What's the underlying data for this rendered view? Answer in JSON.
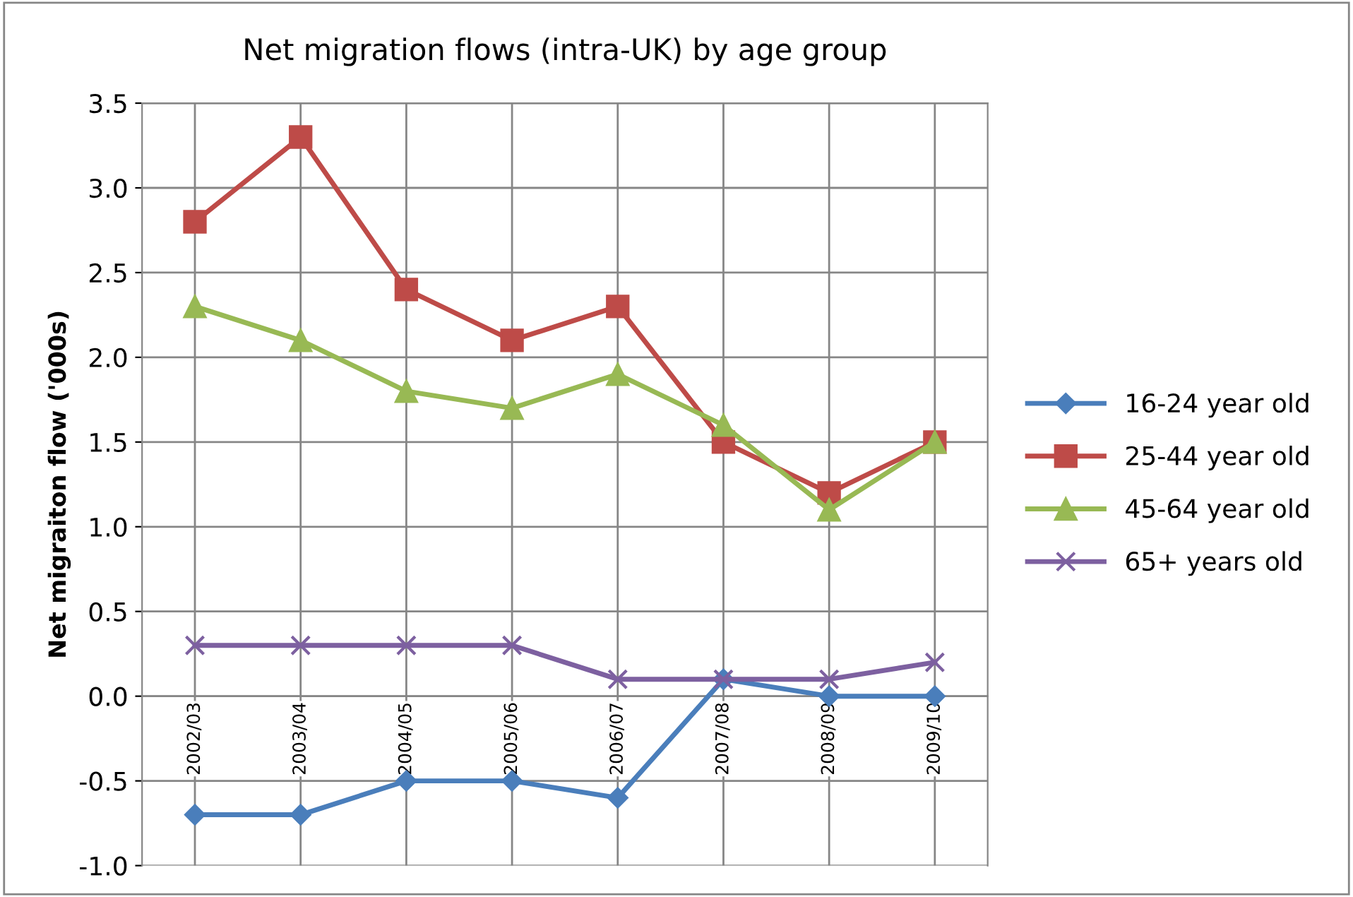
{
  "chart_data": {
    "type": "line",
    "title": "Net migration flows (intra-UK) by age group",
    "ylabel": "Net migraiton flow ('000s)",
    "categories": [
      "2002/03",
      "2003/04",
      "2004/05",
      "2005/06",
      "2006/07",
      "2007/08",
      "2008/09",
      "2009/10"
    ],
    "series": [
      {
        "name": "16-24 year old",
        "color": "#4a7ebb",
        "marker": "diamond",
        "values": [
          -0.7,
          -0.7,
          -0.5,
          -0.5,
          -0.6,
          0.1,
          0.0,
          0.0
        ]
      },
      {
        "name": "25-44 year old",
        "color": "#be4b48",
        "marker": "square",
        "values": [
          2.8,
          3.3,
          2.4,
          2.1,
          2.3,
          1.5,
          1.2,
          1.5
        ]
      },
      {
        "name": "45-64 year old",
        "color": "#98b954",
        "marker": "triangle",
        "values": [
          2.3,
          2.1,
          1.8,
          1.7,
          1.9,
          1.6,
          1.1,
          1.5
        ]
      },
      {
        "name": "65+ years old",
        "color": "#7d60a0",
        "marker": "cross",
        "values": [
          0.3,
          0.3,
          0.3,
          0.3,
          0.1,
          0.1,
          0.1,
          0.2
        ]
      }
    ],
    "ylim": [
      -1.0,
      3.5
    ],
    "yticks": [
      {
        "value": -1.0,
        "label": "-1.0"
      },
      {
        "value": -0.5,
        "label": "-0.5"
      },
      {
        "value": 0.0,
        "label": "0.0"
      },
      {
        "value": 0.5,
        "label": "0.5"
      },
      {
        "value": 1.0,
        "label": "1.0"
      },
      {
        "value": 1.5,
        "label": "1.5"
      },
      {
        "value": 2.0,
        "label": "2.0"
      },
      {
        "value": 2.5,
        "label": "2.5"
      },
      {
        "value": 3.0,
        "label": "3.0"
      },
      {
        "value": 3.5,
        "label": "3.5"
      }
    ],
    "grid": true,
    "legend": "right",
    "line_style": "solid"
  }
}
